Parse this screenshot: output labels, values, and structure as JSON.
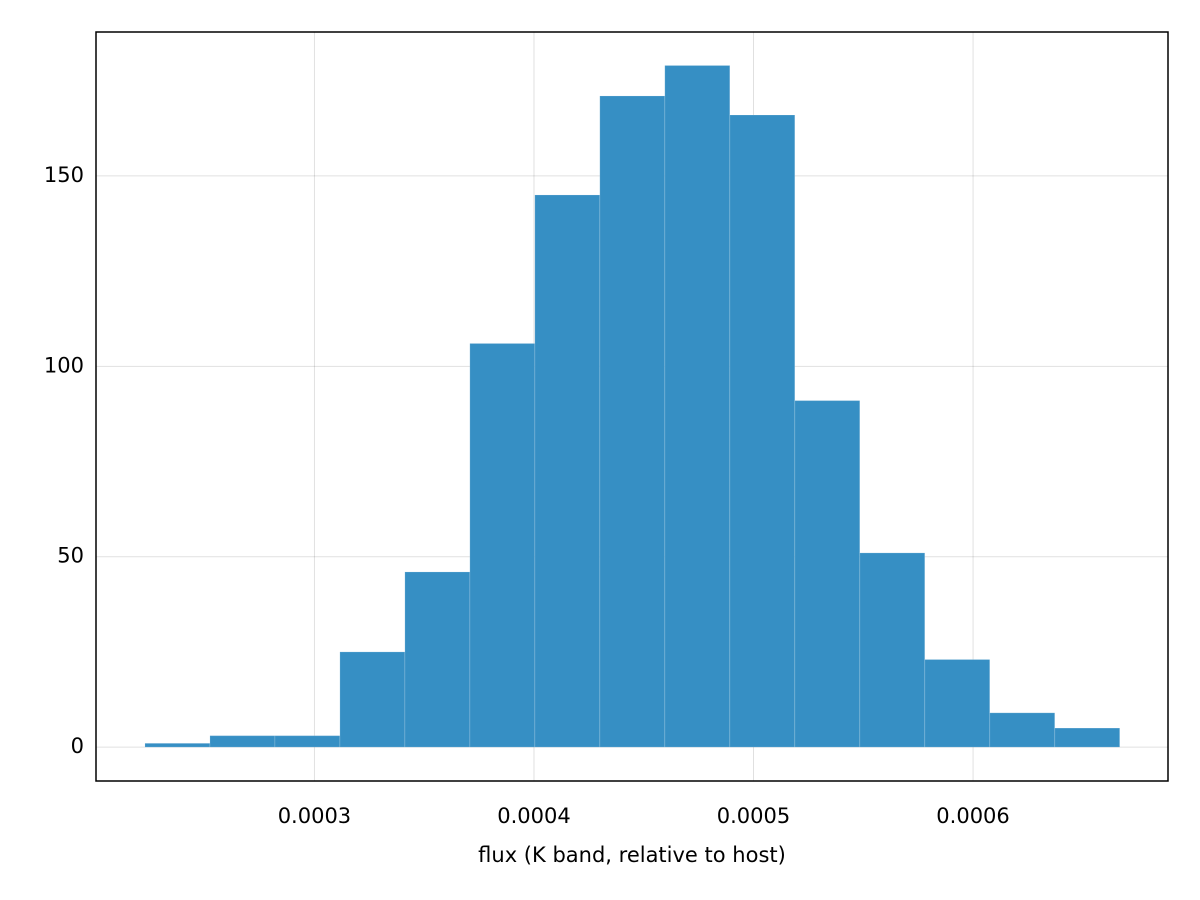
{
  "chart_data": {
    "type": "histogram",
    "xlabel": "flux (K band, relative to host)",
    "bins": [
      0.0002228,
      0.0002524,
      0.000282,
      0.0003116,
      0.0003412,
      0.0003708,
      0.0004004,
      0.00043,
      0.0004596,
      0.0004892,
      0.0005188,
      0.0005484,
      0.000578,
      0.0006076,
      0.0006372,
      0.0006668
    ],
    "values": [
      1,
      3,
      3,
      25,
      46,
      106,
      145,
      171,
      179,
      166,
      91,
      51,
      23,
      9,
      5
    ],
    "color": "#368fc4",
    "xlim": [
      0.0002005,
      0.0006888
    ],
    "ylim": [
      -8.9,
      187.8
    ],
    "xticks": [
      0.0003,
      0.0004,
      0.0005,
      0.0006
    ],
    "yticks": [
      0,
      50,
      100,
      150
    ],
    "grid": true
  }
}
